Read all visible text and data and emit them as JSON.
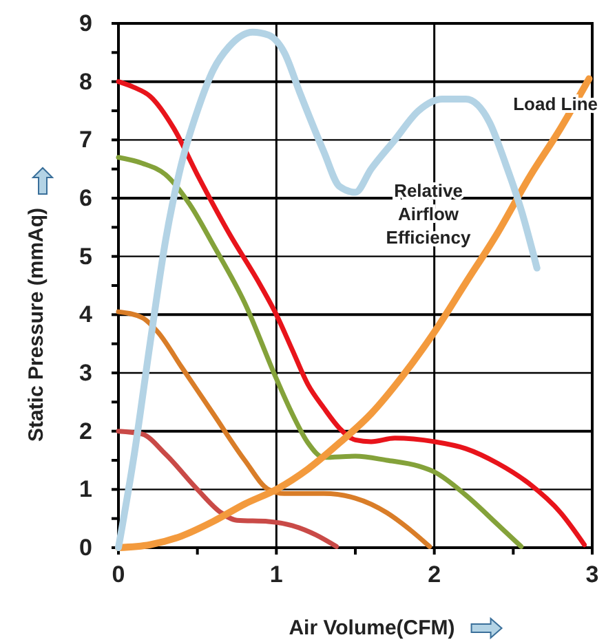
{
  "chart_data": {
    "type": "line",
    "xlabel": "Air Volume(CFM)",
    "ylabel": "Static Pressure (mmAq)",
    "xlim": [
      0,
      3
    ],
    "ylim": [
      0,
      9
    ],
    "xticks": [
      0,
      {
        "value": 0.5,
        "label": null
      },
      1,
      {
        "value": 1.5,
        "label": null
      },
      2,
      {
        "value": 2.5,
        "label": null
      },
      3
    ],
    "yticks": [
      0,
      {
        "value": 0.5,
        "label": null
      },
      1,
      {
        "value": 1.5,
        "label": null
      },
      2,
      {
        "value": 2.5,
        "label": null
      },
      3,
      {
        "value": 3.5,
        "label": null
      },
      4,
      {
        "value": 4.5,
        "label": null
      },
      5,
      {
        "value": 5.5,
        "label": null
      },
      6,
      {
        "value": 6.5,
        "label": null
      },
      7,
      {
        "value": 7.5,
        "label": null
      },
      8,
      {
        "value": 8.5,
        "label": null
      },
      9
    ],
    "grid": true,
    "marker": "none",
    "line_style": "solid",
    "series": [
      {
        "color": "#e8141b",
        "x": [
          0,
          0.1,
          0.2,
          0.35,
          0.5,
          0.7,
          0.9,
          1.0,
          1.1,
          1.2,
          1.3,
          1.4,
          1.5,
          1.6,
          1.75,
          2.0,
          2.2,
          2.4,
          2.6,
          2.8,
          2.95
        ],
        "values": [
          8,
          7.9,
          7.75,
          7.2,
          6.4,
          5.4,
          4.5,
          4.0,
          3.4,
          2.8,
          2.4,
          2.05,
          1.85,
          1.82,
          1.88,
          1.82,
          1.7,
          1.45,
          1.1,
          0.6,
          0.05
        ]
      },
      {
        "color": "#84a23a",
        "x": [
          0,
          0.15,
          0.3,
          0.45,
          0.6,
          0.8,
          1.0,
          1.1,
          1.2,
          1.3,
          1.5,
          1.7,
          1.9,
          2.0,
          2.2,
          2.4,
          2.55
        ],
        "values": [
          6.7,
          6.6,
          6.4,
          5.9,
          5.2,
          4.2,
          2.9,
          2.3,
          1.8,
          1.55,
          1.57,
          1.5,
          1.4,
          1.3,
          0.9,
          0.4,
          0.02
        ]
      },
      {
        "color": "#d97d28",
        "x": [
          0,
          0.15,
          0.25,
          0.4,
          0.6,
          0.8,
          0.95,
          1.05,
          1.3,
          1.5,
          1.7,
          1.85,
          1.97
        ],
        "values": [
          4.05,
          3.95,
          3.7,
          3.1,
          2.3,
          1.5,
          1.0,
          0.93,
          0.93,
          0.85,
          0.6,
          0.3,
          0.02
        ]
      },
      {
        "color": "#c94a47",
        "x": [
          0,
          0.15,
          0.3,
          0.5,
          0.65,
          0.75,
          0.95,
          1.1,
          1.25,
          1.38
        ],
        "values": [
          2.0,
          1.95,
          1.6,
          1.0,
          0.6,
          0.47,
          0.45,
          0.38,
          0.22,
          0.02
        ]
      },
      {
        "name": "Load Line",
        "color": "#f39a3d",
        "x": [
          0,
          0.2,
          0.4,
          0.6,
          0.8,
          1.0,
          1.2,
          1.4,
          1.6,
          1.8,
          2.0,
          2.2,
          2.4,
          2.6,
          2.8,
          2.98
        ],
        "values": [
          0,
          0.05,
          0.2,
          0.45,
          0.75,
          1.0,
          1.35,
          1.8,
          2.3,
          2.95,
          3.7,
          4.55,
          5.4,
          6.35,
          7.2,
          8.05
        ]
      },
      {
        "name": "Relative Airflow Efficiency",
        "color": "#b3d3e5",
        "x": [
          0,
          0.1,
          0.2,
          0.3,
          0.4,
          0.5,
          0.6,
          0.7,
          0.85,
          0.95,
          1.05,
          1.15,
          1.3,
          1.4,
          1.5,
          1.6,
          1.75,
          1.9,
          2.05,
          2.2,
          2.35,
          2.45,
          2.55,
          2.65
        ],
        "values": [
          0,
          1.6,
          3.5,
          5.3,
          6.6,
          7.5,
          8.2,
          8.6,
          8.85,
          8.8,
          8.5,
          7.8,
          6.8,
          6.2,
          6.1,
          6.5,
          7.0,
          7.5,
          7.7,
          7.7,
          7.3,
          6.6,
          5.8,
          4.8
        ]
      }
    ]
  }
}
